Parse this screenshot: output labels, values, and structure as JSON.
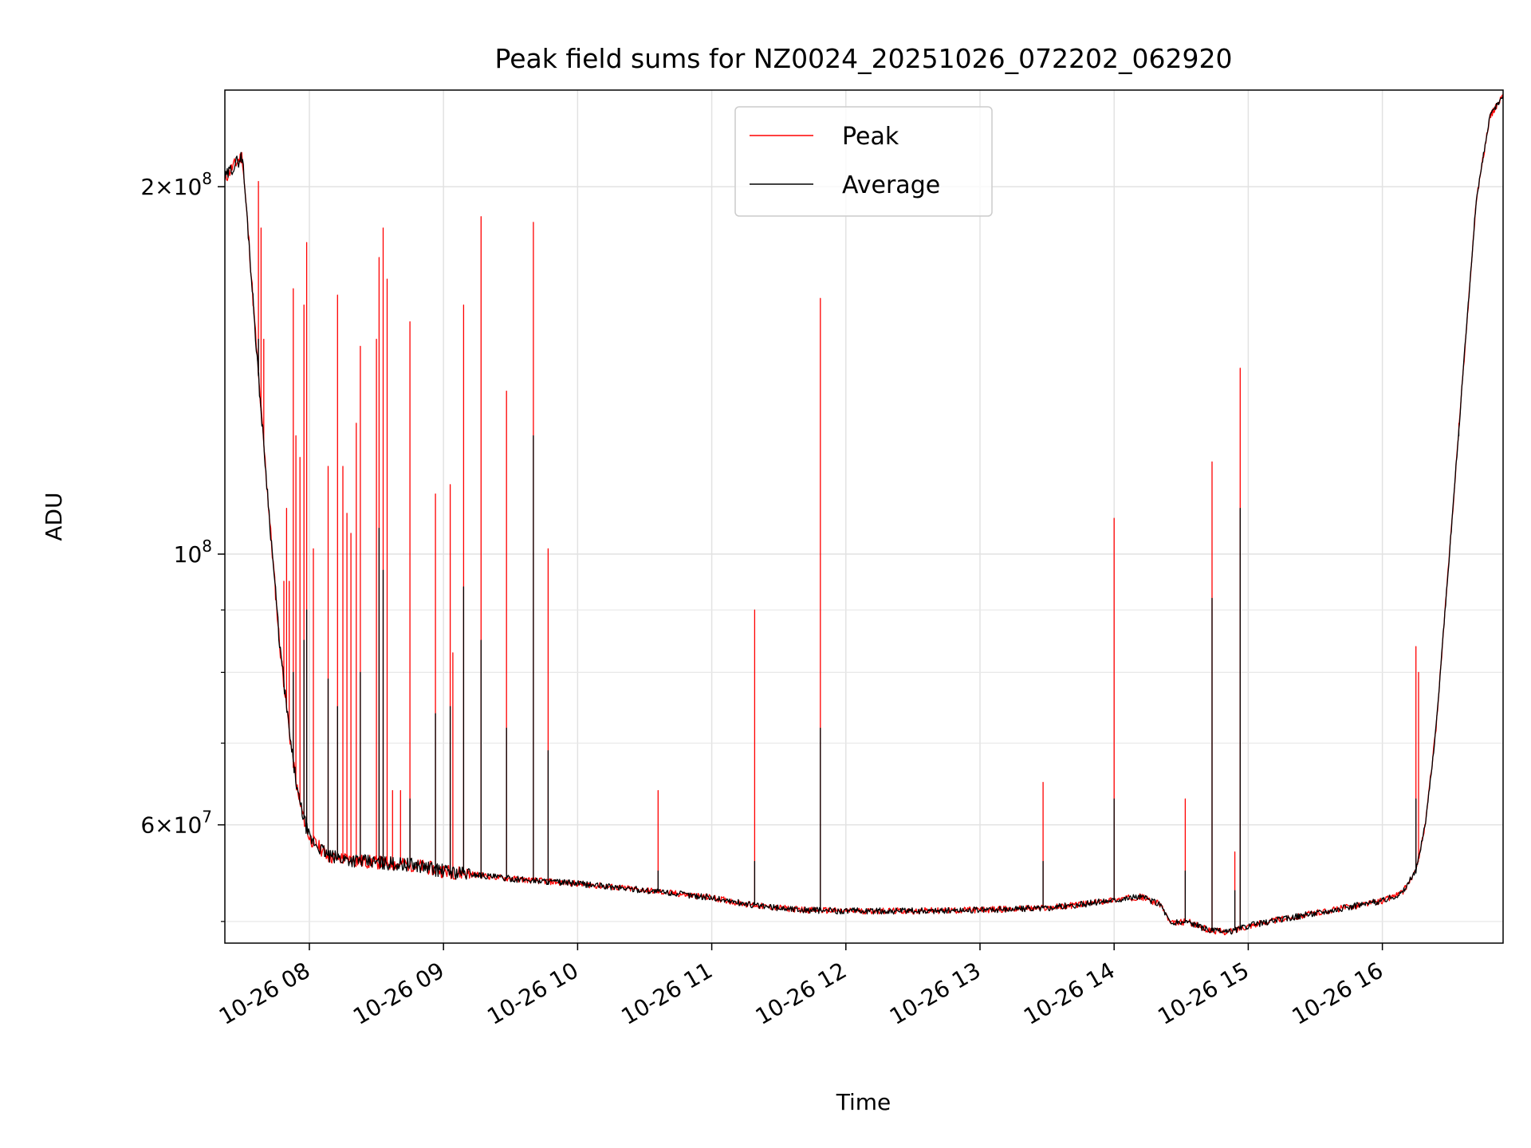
{
  "chart_data": {
    "type": "line",
    "title": "Peak field sums for NZ0024_20251026_072202_062920",
    "xlabel": "Time",
    "ylabel": "ADU",
    "yscale": "log",
    "x_unit": "hours since 10-26 00:00",
    "xlim": [
      7.37,
      16.9
    ],
    "ylim": [
      48000000,
      240000000
    ],
    "grid": true,
    "legend_position": "top-center",
    "x_ticks": [
      {
        "value": 8,
        "label": "10-26 08"
      },
      {
        "value": 9,
        "label": "10-26 09"
      },
      {
        "value": 10,
        "label": "10-26 10"
      },
      {
        "value": 11,
        "label": "10-26 11"
      },
      {
        "value": 12,
        "label": "10-26 12"
      },
      {
        "value": 13,
        "label": "10-26 13"
      },
      {
        "value": 14,
        "label": "10-26 14"
      },
      {
        "value": 15,
        "label": "10-26 15"
      },
      {
        "value": 16,
        "label": "10-26 16"
      }
    ],
    "y_major_ticks": [
      {
        "value": 200000000,
        "base": "2",
        "exp": "8"
      },
      {
        "value": 100000000,
        "base": "",
        "exp": "8"
      },
      {
        "value": 60000000,
        "base": "6",
        "exp": "7"
      }
    ],
    "y_minor_ticks": [
      50000000,
      70000000,
      80000000,
      90000000
    ],
    "series": [
      {
        "name": "Peak",
        "color": "#ff0000",
        "baseline": [
          [
            7.37,
            203000000
          ],
          [
            7.42,
            207000000
          ],
          [
            7.5,
            212000000
          ],
          [
            7.55,
            180000000
          ],
          [
            7.62,
            140000000
          ],
          [
            7.7,
            108000000
          ],
          [
            7.78,
            84000000
          ],
          [
            7.86,
            70000000
          ],
          [
            7.92,
            63000000
          ],
          [
            8.0,
            58500000
          ],
          [
            8.15,
            56500000
          ],
          [
            8.4,
            56000000
          ],
          [
            8.8,
            55600000
          ],
          [
            9.0,
            55000000
          ],
          [
            9.5,
            54200000
          ],
          [
            10.0,
            53700000
          ],
          [
            10.3,
            53300000
          ],
          [
            10.6,
            52900000
          ],
          [
            11.0,
            52300000
          ],
          [
            11.2,
            51800000
          ],
          [
            11.4,
            51400000
          ],
          [
            11.7,
            51100000
          ],
          [
            12.0,
            51000000
          ],
          [
            12.5,
            51000000
          ],
          [
            13.0,
            51100000
          ],
          [
            13.5,
            51300000
          ],
          [
            13.8,
            51700000
          ],
          [
            14.0,
            52100000
          ],
          [
            14.2,
            52400000
          ],
          [
            14.35,
            51600000
          ],
          [
            14.42,
            49800000
          ],
          [
            14.55,
            50000000
          ],
          [
            14.7,
            49200000
          ],
          [
            14.85,
            49000000
          ],
          [
            15.0,
            49600000
          ],
          [
            15.2,
            50100000
          ],
          [
            15.5,
            50800000
          ],
          [
            15.8,
            51500000
          ],
          [
            16.0,
            52000000
          ],
          [
            16.15,
            52800000
          ],
          [
            16.25,
            55000000
          ],
          [
            16.32,
            60000000
          ],
          [
            16.4,
            72000000
          ],
          [
            16.5,
            100000000
          ],
          [
            16.6,
            140000000
          ],
          [
            16.7,
            195000000
          ],
          [
            16.8,
            228000000
          ],
          [
            16.9,
            238000000
          ]
        ],
        "spikes": [
          [
            7.62,
            202000000
          ],
          [
            7.64,
            185000000
          ],
          [
            7.66,
            150000000
          ],
          [
            7.81,
            95000000
          ],
          [
            7.83,
            109000000
          ],
          [
            7.85,
            95000000
          ],
          [
            7.88,
            165000000
          ],
          [
            7.9,
            125000000
          ],
          [
            7.93,
            120000000
          ],
          [
            7.96,
            160000000
          ],
          [
            7.98,
            180000000
          ],
          [
            8.03,
            101000000
          ],
          [
            8.14,
            118000000
          ],
          [
            8.21,
            163000000
          ],
          [
            8.25,
            118000000
          ],
          [
            8.28,
            108000000
          ],
          [
            8.31,
            104000000
          ],
          [
            8.35,
            128000000
          ],
          [
            8.38,
            148000000
          ],
          [
            8.5,
            150000000
          ],
          [
            8.52,
            175000000
          ],
          [
            8.55,
            185000000
          ],
          [
            8.58,
            168000000
          ],
          [
            8.62,
            64000000
          ],
          [
            8.68,
            64000000
          ],
          [
            8.75,
            155000000
          ],
          [
            8.94,
            112000000
          ],
          [
            9.05,
            114000000
          ],
          [
            9.07,
            83000000
          ],
          [
            9.15,
            160000000
          ],
          [
            9.28,
            189000000
          ],
          [
            9.47,
            136000000
          ],
          [
            9.67,
            187000000
          ],
          [
            9.78,
            101000000
          ],
          [
            10.6,
            64000000
          ],
          [
            11.32,
            90000000
          ],
          [
            11.81,
            162000000
          ],
          [
            13.47,
            65000000
          ],
          [
            14.0,
            107000000
          ],
          [
            14.53,
            63000000
          ],
          [
            14.73,
            119000000
          ],
          [
            14.9,
            57000000
          ],
          [
            14.94,
            142000000
          ],
          [
            16.25,
            84000000
          ],
          [
            16.27,
            80000000
          ],
          [
            16.57,
            128000000
          ]
        ]
      },
      {
        "name": "Average",
        "color": "#000000",
        "baseline": [
          [
            7.37,
            203000000
          ],
          [
            7.42,
            207000000
          ],
          [
            7.5,
            212000000
          ],
          [
            7.55,
            180000000
          ],
          [
            7.62,
            140000000
          ],
          [
            7.7,
            108000000
          ],
          [
            7.78,
            84000000
          ],
          [
            7.86,
            70000000
          ],
          [
            7.92,
            63000000
          ],
          [
            8.0,
            58500000
          ],
          [
            8.15,
            56500000
          ],
          [
            8.4,
            56000000
          ],
          [
            8.8,
            55600000
          ],
          [
            9.0,
            55000000
          ],
          [
            9.5,
            54200000
          ],
          [
            10.0,
            53700000
          ],
          [
            10.3,
            53300000
          ],
          [
            10.6,
            52900000
          ],
          [
            11.0,
            52300000
          ],
          [
            11.2,
            51800000
          ],
          [
            11.4,
            51400000
          ],
          [
            11.7,
            51100000
          ],
          [
            12.0,
            51000000
          ],
          [
            12.5,
            51000000
          ],
          [
            13.0,
            51100000
          ],
          [
            13.5,
            51300000
          ],
          [
            13.8,
            51700000
          ],
          [
            14.0,
            52100000
          ],
          [
            14.2,
            52400000
          ],
          [
            14.35,
            51600000
          ],
          [
            14.42,
            49800000
          ],
          [
            14.55,
            50000000
          ],
          [
            14.7,
            49200000
          ],
          [
            14.85,
            49000000
          ],
          [
            15.0,
            49600000
          ],
          [
            15.2,
            50100000
          ],
          [
            15.5,
            50800000
          ],
          [
            15.8,
            51500000
          ],
          [
            16.0,
            52000000
          ],
          [
            16.15,
            52800000
          ],
          [
            16.25,
            55000000
          ],
          [
            16.32,
            60000000
          ],
          [
            16.4,
            72000000
          ],
          [
            16.5,
            100000000
          ],
          [
            16.6,
            140000000
          ],
          [
            16.7,
            195000000
          ],
          [
            16.8,
            228000000
          ],
          [
            16.9,
            238000000
          ]
        ],
        "spikes": [
          [
            7.62,
            150000000
          ],
          [
            7.88,
            80000000
          ],
          [
            7.96,
            85000000
          ],
          [
            7.98,
            90000000
          ],
          [
            8.14,
            79000000
          ],
          [
            8.21,
            75000000
          ],
          [
            8.38,
            80000000
          ],
          [
            8.52,
            105000000
          ],
          [
            8.55,
            97000000
          ],
          [
            8.75,
            63000000
          ],
          [
            8.94,
            74000000
          ],
          [
            9.05,
            75000000
          ],
          [
            9.15,
            94000000
          ],
          [
            9.28,
            85000000
          ],
          [
            9.47,
            72000000
          ],
          [
            9.67,
            125000000
          ],
          [
            9.78,
            69000000
          ],
          [
            10.6,
            55000000
          ],
          [
            11.32,
            56000000
          ],
          [
            11.81,
            72000000
          ],
          [
            13.47,
            56000000
          ],
          [
            14.0,
            63000000
          ],
          [
            14.53,
            55000000
          ],
          [
            14.73,
            92000000
          ],
          [
            14.9,
            53000000
          ],
          [
            14.94,
            109000000
          ],
          [
            16.25,
            63000000
          ],
          [
            16.57,
            125000000
          ]
        ]
      }
    ]
  }
}
